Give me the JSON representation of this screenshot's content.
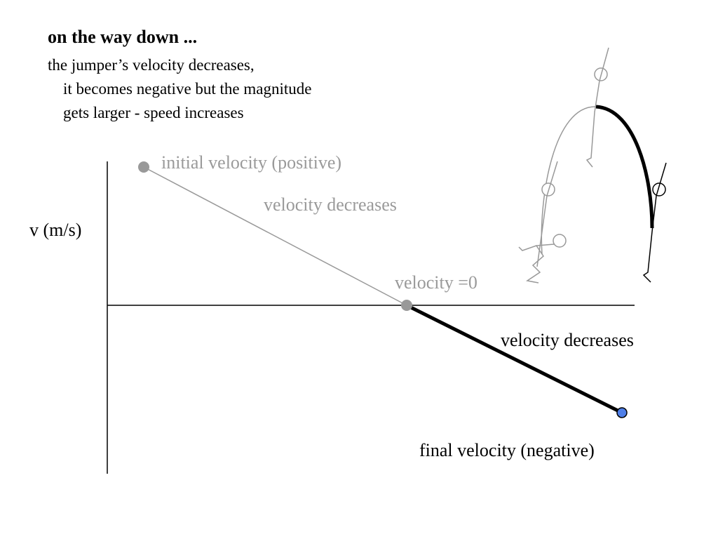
{
  "header": {
    "title": "on the way down ...",
    "line1": "the jumper’s velocity decreases,",
    "line2": "it becomes negative but the magnitude",
    "line3": "gets larger - speed increases"
  },
  "graph": {
    "ylabel": "v (m/s)",
    "initial_label": "initial velocity (positive)",
    "decreases_label_upper": "velocity decreases",
    "zero_label": "velocity =0",
    "decreases_label_lower": "velocity decreases",
    "final_label": "final velocity (negative)"
  },
  "colors": {
    "gray": "#999999",
    "label_gray": "#9a9a9a",
    "black": "#000000",
    "final_point": "#4f7fe8"
  }
}
